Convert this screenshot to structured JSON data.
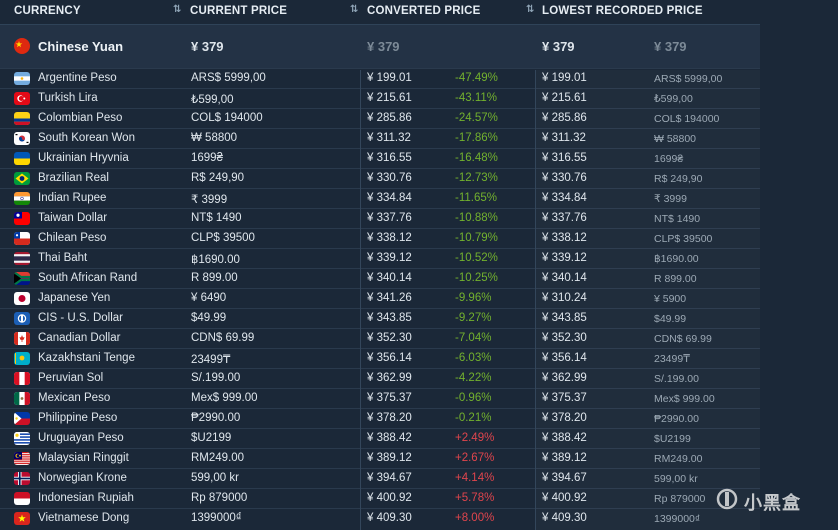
{
  "headers": {
    "currency": "CURRENCY",
    "current_price": "CURRENT PRICE",
    "converted_price": "CONVERTED PRICE",
    "lowest_recorded_price": "LOWEST RECORDED PRICE"
  },
  "base": {
    "name": "Chinese Yuan",
    "current": "¥ 379",
    "converted": "¥ 379",
    "lowest": "¥ 379",
    "lowest_raw": "¥ 379",
    "flag": "china-flag-icon"
  },
  "rows": [
    {
      "name": "Argentine Peso",
      "current": "ARS$ 5999,00",
      "converted": "¥ 199.01",
      "pct": "-47.49%",
      "lowest": "¥ 199.01",
      "lowest_raw": "ARS$ 5999,00",
      "flag": "argentina-flag-icon"
    },
    {
      "name": "Turkish Lira",
      "current": "₺599,00",
      "converted": "¥ 215.61",
      "pct": "-43.11%",
      "lowest": "¥ 215.61",
      "lowest_raw": "₺599,00",
      "flag": "turkey-flag-icon"
    },
    {
      "name": "Colombian Peso",
      "current": "COL$ 194000",
      "converted": "¥ 285.86",
      "pct": "-24.57%",
      "lowest": "¥ 285.86",
      "lowest_raw": "COL$ 194000",
      "flag": "colombia-flag-icon"
    },
    {
      "name": "South Korean Won",
      "current": "₩ 58800",
      "converted": "¥ 311.32",
      "pct": "-17.86%",
      "lowest": "¥ 311.32",
      "lowest_raw": "₩ 58800",
      "flag": "south-korea-flag-icon"
    },
    {
      "name": "Ukrainian Hryvnia",
      "current": "1699₴",
      "converted": "¥ 316.55",
      "pct": "-16.48%",
      "lowest": "¥ 316.55",
      "lowest_raw": "1699₴",
      "flag": "ukraine-flag-icon"
    },
    {
      "name": "Brazilian Real",
      "current": "R$ 249,90",
      "converted": "¥ 330.76",
      "pct": "-12.73%",
      "lowest": "¥ 330.76",
      "lowest_raw": "R$ 249,90",
      "flag": "brazil-flag-icon"
    },
    {
      "name": "Indian Rupee",
      "current": "₹ 3999",
      "converted": "¥ 334.84",
      "pct": "-11.65%",
      "lowest": "¥ 334.84",
      "lowest_raw": "₹ 3999",
      "flag": "india-flag-icon"
    },
    {
      "name": "Taiwan Dollar",
      "current": "NT$ 1490",
      "converted": "¥ 337.76",
      "pct": "-10.88%",
      "lowest": "¥ 337.76",
      "lowest_raw": "NT$ 1490",
      "flag": "taiwan-flag-icon"
    },
    {
      "name": "Chilean Peso",
      "current": "CLP$ 39500",
      "converted": "¥ 338.12",
      "pct": "-10.79%",
      "lowest": "¥ 338.12",
      "lowest_raw": "CLP$ 39500",
      "flag": "chile-flag-icon"
    },
    {
      "name": "Thai Baht",
      "current": "฿1690.00",
      "converted": "¥ 339.12",
      "pct": "-10.52%",
      "lowest": "¥ 339.12",
      "lowest_raw": "฿1690.00",
      "flag": "thailand-flag-icon"
    },
    {
      "name": "South African Rand",
      "current": "R 899.00",
      "converted": "¥ 340.14",
      "pct": "-10.25%",
      "lowest": "¥ 340.14",
      "lowest_raw": "R 899.00",
      "flag": "south-africa-flag-icon"
    },
    {
      "name": "Japanese Yen",
      "current": "¥ 6490",
      "converted": "¥ 341.26",
      "pct": "-9.96%",
      "lowest": "¥ 310.24",
      "lowest_raw": "¥ 5900",
      "flag": "japan-flag-icon"
    },
    {
      "name": "CIS - U.S. Dollar",
      "current": "$49.99",
      "converted": "¥ 343.85",
      "pct": "-9.27%",
      "lowest": "¥ 343.85",
      "lowest_raw": "$49.99",
      "flag": "cis-flag-icon"
    },
    {
      "name": "Canadian Dollar",
      "current": "CDN$ 69.99",
      "converted": "¥ 352.30",
      "pct": "-7.04%",
      "lowest": "¥ 352.30",
      "lowest_raw": "CDN$ 69.99",
      "flag": "canada-flag-icon"
    },
    {
      "name": "Kazakhstani Tenge",
      "current": "23499₸",
      "converted": "¥ 356.14",
      "pct": "-6.03%",
      "lowest": "¥ 356.14",
      "lowest_raw": "23499₸",
      "flag": "kazakhstan-flag-icon"
    },
    {
      "name": "Peruvian Sol",
      "current": "S/.199.00",
      "converted": "¥ 362.99",
      "pct": "-4.22%",
      "lowest": "¥ 362.99",
      "lowest_raw": "S/.199.00",
      "flag": "peru-flag-icon"
    },
    {
      "name": "Mexican Peso",
      "current": "Mex$ 999.00",
      "converted": "¥ 375.37",
      "pct": "-0.96%",
      "lowest": "¥ 375.37",
      "lowest_raw": "Mex$ 999.00",
      "flag": "mexico-flag-icon"
    },
    {
      "name": "Philippine Peso",
      "current": "₱2990.00",
      "converted": "¥ 378.20",
      "pct": "-0.21%",
      "lowest": "¥ 378.20",
      "lowest_raw": "₱2990.00",
      "flag": "philippines-flag-icon"
    },
    {
      "name": "Uruguayan Peso",
      "current": "$U2199",
      "converted": "¥ 388.42",
      "pct": "+2.49%",
      "lowest": "¥ 388.42",
      "lowest_raw": "$U2199",
      "flag": "uruguay-flag-icon"
    },
    {
      "name": "Malaysian Ringgit",
      "current": "RM249.00",
      "converted": "¥ 389.12",
      "pct": "+2.67%",
      "lowest": "¥ 389.12",
      "lowest_raw": "RM249.00",
      "flag": "malaysia-flag-icon"
    },
    {
      "name": "Norwegian Krone",
      "current": "599,00 kr",
      "converted": "¥ 394.67",
      "pct": "+4.14%",
      "lowest": "¥ 394.67",
      "lowest_raw": "599,00 kr",
      "flag": "norway-flag-icon"
    },
    {
      "name": "Indonesian Rupiah",
      "current": "Rp 879000",
      "converted": "¥ 400.92",
      "pct": "+5.78%",
      "lowest": "¥ 400.92",
      "lowest_raw": "Rp 879000",
      "flag": "indonesia-flag-icon"
    },
    {
      "name": "Vietnamese Dong",
      "current": "1399000₫",
      "converted": "¥ 409.30",
      "pct": "+8.00%",
      "lowest": "¥ 409.30",
      "lowest_raw": "1399000₫",
      "flag": "vietnam-flag-icon"
    }
  ],
  "watermark": {
    "text": "小黑盒",
    "icon": "heybox-logo-icon"
  },
  "colors": {
    "background": "#1b2838",
    "negative": "#73b12e",
    "positive": "#e0454d",
    "base_row": "#233245"
  }
}
